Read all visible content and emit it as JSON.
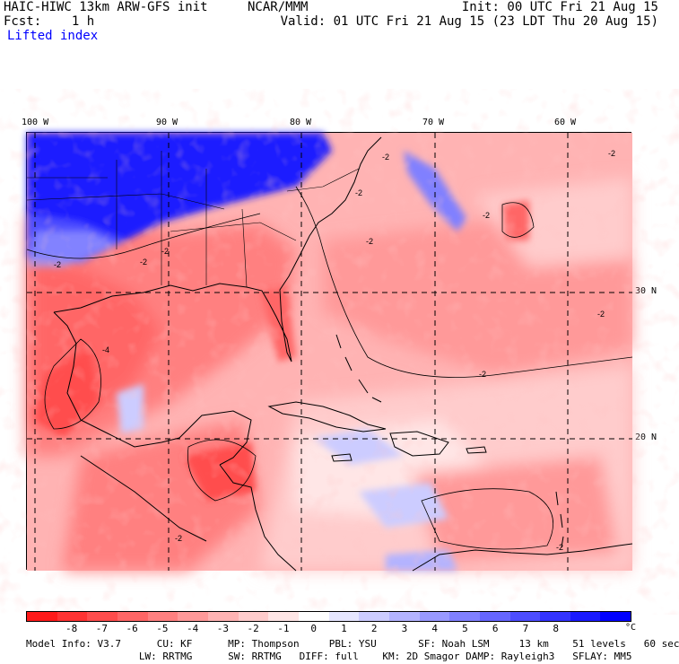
{
  "header": {
    "model": "HAIC-HIWC 13km ARW-GFS init",
    "org": "NCAR/MMM",
    "init": "Init: 00 UTC Fri 21 Aug 15",
    "fcst": "Fcst:    1 h",
    "valid": "Valid: 01 UTC Fri 21 Aug 15 (23 LDT Thu 20 Aug 15)",
    "field": "Lifted index"
  },
  "map": {
    "lon_labels": [
      "100 W",
      "90 W",
      "80 W",
      "70 W",
      "60 W"
    ],
    "lat_labels": [
      "30 N",
      "20 N"
    ],
    "contour_labels": [
      "-2",
      "-2",
      "-2",
      "-2",
      "-2",
      "-2",
      "-2",
      "-2",
      "-2",
      "-2",
      "-4",
      "-2",
      "-2"
    ]
  },
  "colorbar": {
    "colors": [
      "#ff1a1a",
      "#ff3333",
      "#ff4d4d",
      "#ff6666",
      "#ff8080",
      "#ff9999",
      "#ffb3b3",
      "#ffcccc",
      "#ffe6e6",
      "#ffffff",
      "#e6e6ff",
      "#ccccff",
      "#b3b3ff",
      "#9999ff",
      "#8080ff",
      "#6666ff",
      "#4d4dff",
      "#3333ff",
      "#1a1aff",
      "#0000ff"
    ],
    "labels": [
      "-8",
      "-7",
      "-6",
      "-5",
      "-4",
      "-3",
      "-2",
      "-1",
      "0",
      "1",
      "2",
      "3",
      "4",
      "5",
      "6",
      "7",
      "8"
    ],
    "unit": "°C"
  },
  "footer": {
    "line1": "Model Info: V3.7      CU: KF      MP: Thompson     PBL: YSU       SF: Noah LSM     13 km    51 levels   60 sec",
    "line2": "                   LW: RRTMG      SW: RRTMG   DIFF: full    KM: 2D Smagor DAMP: Rayleigh3   SFLAY: MM5"
  }
}
